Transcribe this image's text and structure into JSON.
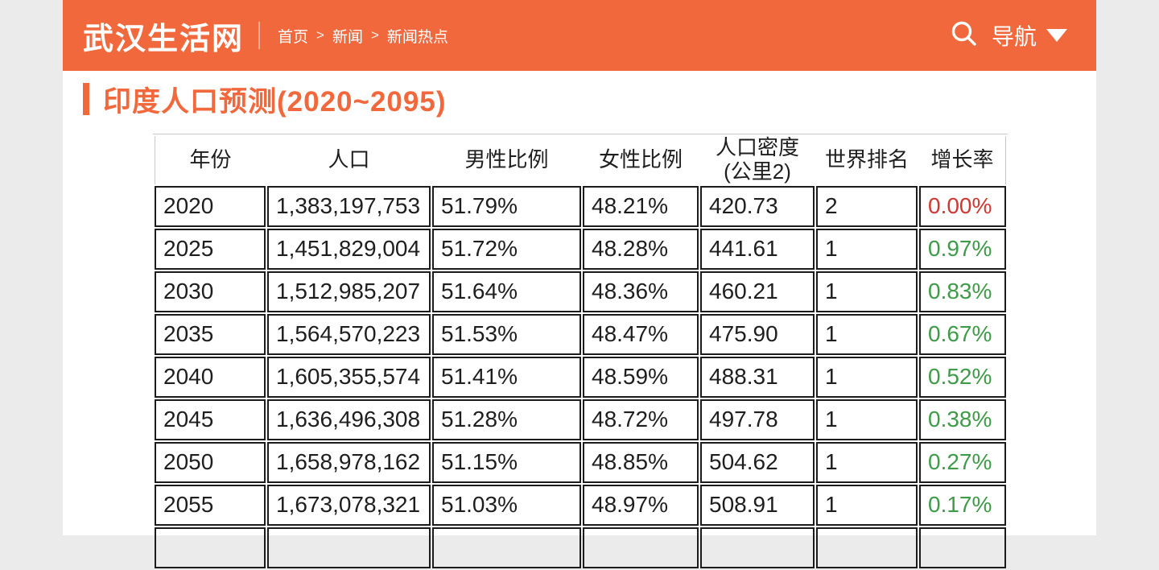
{
  "theme": {
    "accent": "#F1683C",
    "page_bg": "#EBEBEB",
    "growth_red": "#CF3832",
    "growth_green": "#3E9B47",
    "body_border": "#1C1C1C",
    "header_border": "#C9C9C9"
  },
  "header": {
    "logo": "武汉生活网",
    "breadcrumb": {
      "items": [
        "首页",
        "新闻",
        "新闻热点"
      ],
      "separator": ">"
    },
    "search_icon": "magnifier-icon",
    "nav_label": "导航",
    "nav_caret": "triangle-down-icon"
  },
  "main": {
    "title": "印度人口预测(2020~2095)"
  },
  "table": {
    "columns": [
      "年份",
      "人口",
      "男性比例",
      "女性比例",
      "人口密度\n(公里2)",
      "世界排名",
      "增长率"
    ],
    "rows": [
      {
        "year": "2020",
        "population": "1,383,197,753",
        "male": "51.79%",
        "female": "48.21%",
        "density": "420.73",
        "rank": "2",
        "growth": "0.00%",
        "growth_color": "red"
      },
      {
        "year": "2025",
        "population": "1,451,829,004",
        "male": "51.72%",
        "female": "48.28%",
        "density": "441.61",
        "rank": "1",
        "growth": "0.97%",
        "growth_color": "green"
      },
      {
        "year": "2030",
        "population": "1,512,985,207",
        "male": "51.64%",
        "female": "48.36%",
        "density": "460.21",
        "rank": "1",
        "growth": "0.83%",
        "growth_color": "green"
      },
      {
        "year": "2035",
        "population": "1,564,570,223",
        "male": "51.53%",
        "female": "48.47%",
        "density": "475.90",
        "rank": "1",
        "growth": "0.67%",
        "growth_color": "green"
      },
      {
        "year": "2040",
        "population": "1,605,355,574",
        "male": "51.41%",
        "female": "48.59%",
        "density": "488.31",
        "rank": "1",
        "growth": "0.52%",
        "growth_color": "green"
      },
      {
        "year": "2045",
        "population": "1,636,496,308",
        "male": "51.28%",
        "female": "48.72%",
        "density": "497.78",
        "rank": "1",
        "growth": "0.38%",
        "growth_color": "green"
      },
      {
        "year": "2050",
        "population": "1,658,978,162",
        "male": "51.15%",
        "female": "48.85%",
        "density": "504.62",
        "rank": "1",
        "growth": "0.27%",
        "growth_color": "green"
      },
      {
        "year": "2055",
        "population": "1,673,078,321",
        "male": "51.03%",
        "female": "48.97%",
        "density": "508.91",
        "rank": "1",
        "growth": "0.17%",
        "growth_color": "green"
      }
    ],
    "partial_row": {
      "year": "",
      "population": "",
      "male": "",
      "female": "",
      "density": "",
      "rank": "",
      "growth": "",
      "growth_color": ""
    }
  }
}
